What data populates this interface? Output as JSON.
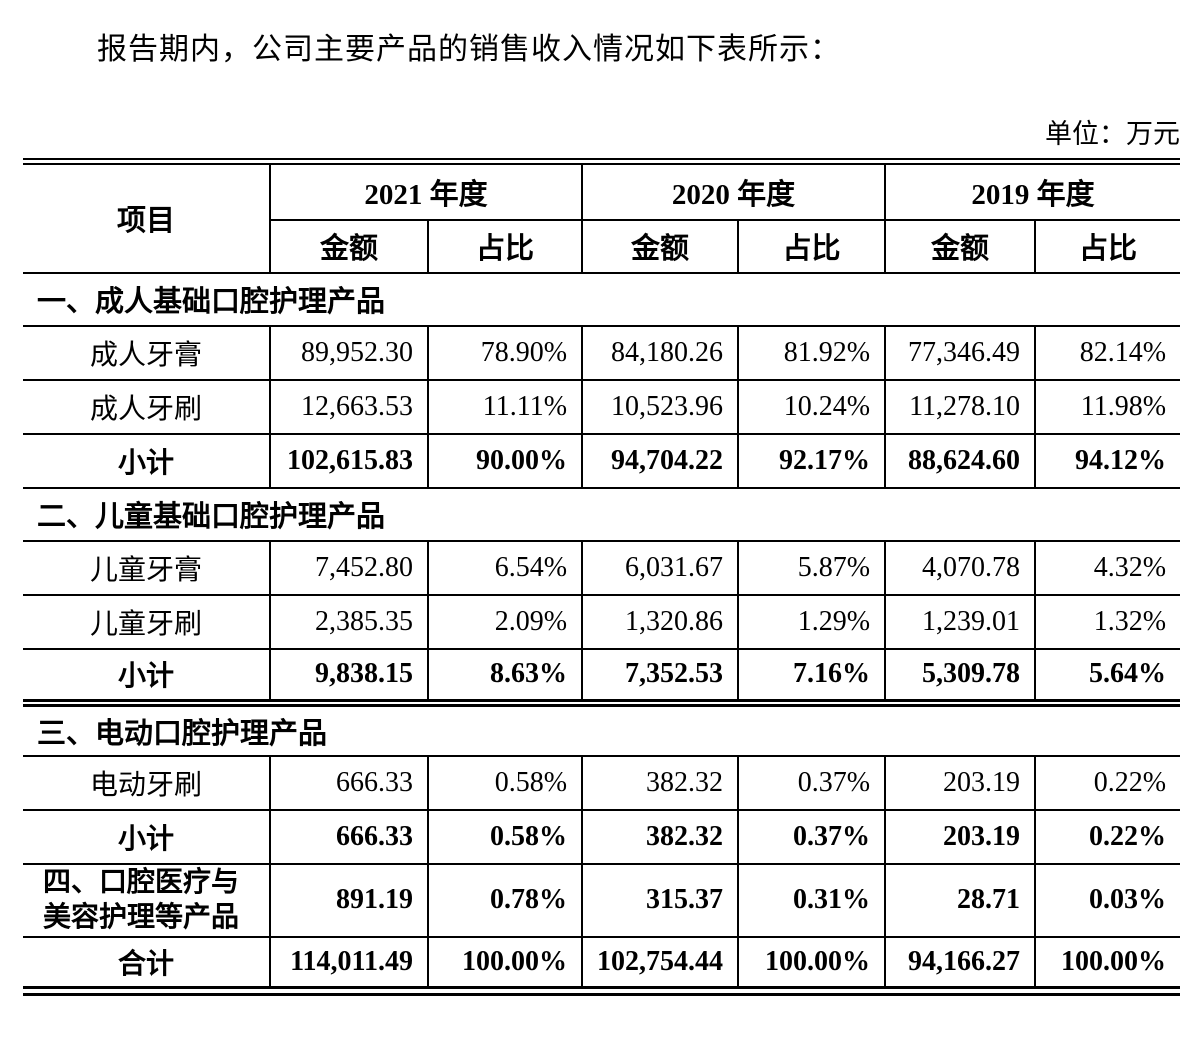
{
  "page": {
    "intro": "报告期内，公司主要产品的销售收入情况如下表所示：",
    "unit_label": "单位：万元"
  },
  "table": {
    "header": {
      "item_label": "项目",
      "year_groups": [
        {
          "label": "2021 年度"
        },
        {
          "label": "2020 年度"
        },
        {
          "label": "2019 年度"
        }
      ],
      "sub_headers": {
        "amount": "金额",
        "ratio": "占比"
      }
    },
    "rows": [
      {
        "type": "section",
        "label": "一、成人基础口腔护理产品"
      },
      {
        "type": "data",
        "label": "成人牙膏",
        "values": [
          "89,952.30",
          "78.90%",
          "84,180.26",
          "81.92%",
          "77,346.49",
          "82.14%"
        ]
      },
      {
        "type": "data",
        "label": "成人牙刷",
        "values": [
          "12,663.53",
          "11.11%",
          "10,523.96",
          "10.24%",
          "11,278.10",
          "11.98%"
        ]
      },
      {
        "type": "subtotal",
        "label": "小计",
        "values": [
          "102,615.83",
          "90.00%",
          "94,704.22",
          "92.17%",
          "88,624.60",
          "94.12%"
        ]
      },
      {
        "type": "section",
        "label": "二、儿童基础口腔护理产品"
      },
      {
        "type": "data",
        "label": "儿童牙膏",
        "values": [
          "7,452.80",
          "6.54%",
          "6,031.67",
          "5.87%",
          "4,070.78",
          "4.32%"
        ]
      },
      {
        "type": "data",
        "label": "儿童牙刷",
        "values": [
          "2,385.35",
          "2.09%",
          "1,320.86",
          "1.29%",
          "1,239.01",
          "1.32%"
        ]
      },
      {
        "type": "subtotal",
        "label": "小计",
        "values": [
          "9,838.15",
          "8.63%",
          "7,352.53",
          "7.16%",
          "5,309.78",
          "5.64%"
        ],
        "divider_after": "double"
      },
      {
        "type": "section",
        "label": "三、电动口腔护理产品"
      },
      {
        "type": "data",
        "label": "电动牙刷",
        "values": [
          "666.33",
          "0.58%",
          "382.32",
          "0.37%",
          "203.19",
          "0.22%"
        ]
      },
      {
        "type": "subtotal",
        "label": "小计",
        "values": [
          "666.33",
          "0.58%",
          "382.32",
          "0.37%",
          "203.19",
          "0.22%"
        ]
      },
      {
        "type": "four",
        "label": "四、口腔医疗与\n美容护理等产品",
        "values": [
          "891.19",
          "0.78%",
          "315.37",
          "0.31%",
          "28.71",
          "0.03%"
        ]
      },
      {
        "type": "total",
        "label": "合计",
        "values": [
          "114,011.49",
          "100.00%",
          "102,754.44",
          "100.00%",
          "94,166.27",
          "100.00%"
        ]
      }
    ]
  }
}
